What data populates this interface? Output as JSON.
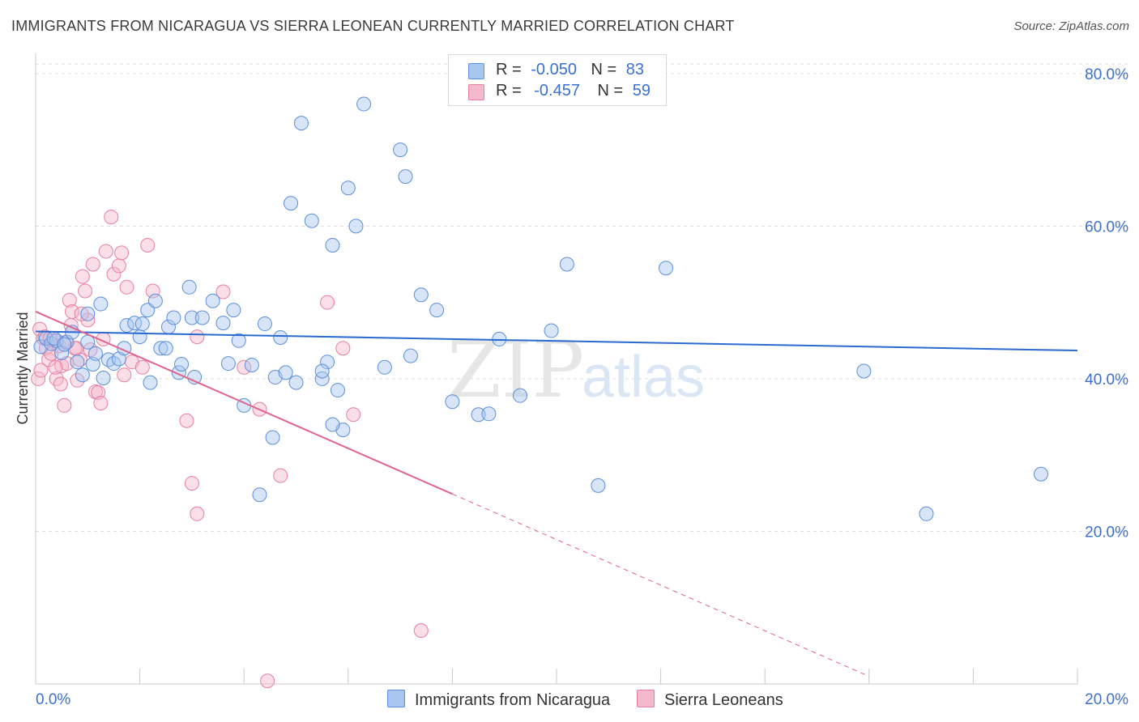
{
  "title": "IMMIGRANTS FROM NICARAGUA VS SIERRA LEONEAN CURRENTLY MARRIED CORRELATION CHART",
  "source": "Source: ZipAtlas.com",
  "watermark": {
    "zip": "ZIP",
    "atlas": "atlas"
  },
  "legend": {
    "rows": [
      {
        "r_label": "R =",
        "r_value": "-0.050",
        "n_label": "N =",
        "n_value": "83"
      },
      {
        "r_label": "R =",
        "r_value": "-0.457",
        "n_label": "N =",
        "n_value": "59"
      }
    ]
  },
  "bottom_legend": [
    "Immigrants from Nicaragua",
    "Sierra Leoneans"
  ],
  "colors": {
    "blue_fill": "#a9c6ef",
    "blue_stroke": "#5b8fd9",
    "blue_line": "#2a6ad0",
    "pink_fill": "#f4b9cc",
    "pink_stroke": "#e77fa0",
    "pink_line": "#e0648e",
    "tick_label": "#3b6fd1",
    "grid": "#dcdcdc"
  },
  "chart_data": {
    "type": "scatter",
    "title": "IMMIGRANTS FROM NICARAGUA VS SIERRA LEONEAN CURRENTLY MARRIED CORRELATION CHART",
    "xlabel": "",
    "ylabel": "Currently Married",
    "xlim": [
      0,
      20
    ],
    "ylim": [
      0,
      82
    ],
    "x_tick_labels": [
      "0.0%",
      "20.0%"
    ],
    "y_ticks": [
      20,
      40,
      60,
      80
    ],
    "y_tick_labels": [
      "20.0%",
      "40.0%",
      "60.0%",
      "80.0%"
    ],
    "grid": true,
    "series": [
      {
        "name": "Immigrants from Nicaragua",
        "color": "blue",
        "trend": {
          "x0": 0.0,
          "y0": 46.2,
          "x1": 20.0,
          "y1": 43.7,
          "dashed_from": null
        },
        "points": [
          [
            0.1,
            44.2
          ],
          [
            0.2,
            45.3
          ],
          [
            0.3,
            44.6
          ],
          [
            0.4,
            45.0
          ],
          [
            0.5,
            43.4
          ],
          [
            0.6,
            44.8
          ],
          [
            0.7,
            46.1
          ],
          [
            0.8,
            42.2
          ],
          [
            0.9,
            40.5
          ],
          [
            1.0,
            44.8
          ],
          [
            1.1,
            41.9
          ],
          [
            1.15,
            43.3
          ],
          [
            1.25,
            49.8
          ],
          [
            1.4,
            42.5
          ],
          [
            1.5,
            42.0
          ],
          [
            1.6,
            42.6
          ],
          [
            1.7,
            44.0
          ],
          [
            1.75,
            47.0
          ],
          [
            1.9,
            47.3
          ],
          [
            2.0,
            45.5
          ],
          [
            2.05,
            47.2
          ],
          [
            2.15,
            49.0
          ],
          [
            2.2,
            39.5
          ],
          [
            2.3,
            50.2
          ],
          [
            2.4,
            44.0
          ],
          [
            2.5,
            44.0
          ],
          [
            2.55,
            46.8
          ],
          [
            2.65,
            48.0
          ],
          [
            2.75,
            40.8
          ],
          [
            2.8,
            41.9
          ],
          [
            2.95,
            52.0
          ],
          [
            3.0,
            48.0
          ],
          [
            3.05,
            40.2
          ],
          [
            3.2,
            48.0
          ],
          [
            3.4,
            50.2
          ],
          [
            3.6,
            47.3
          ],
          [
            3.8,
            49.0
          ],
          [
            3.9,
            45.0
          ],
          [
            4.0,
            36.5
          ],
          [
            4.15,
            41.8
          ],
          [
            4.4,
            47.2
          ],
          [
            4.55,
            32.3
          ],
          [
            4.6,
            40.2
          ],
          [
            4.7,
            45.4
          ],
          [
            4.8,
            40.8
          ],
          [
            4.9,
            63.0
          ],
          [
            5.0,
            39.5
          ],
          [
            5.1,
            73.5
          ],
          [
            5.3,
            60.7
          ],
          [
            5.5,
            40.0
          ],
          [
            5.6,
            42.2
          ],
          [
            5.7,
            57.5
          ],
          [
            5.8,
            38.5
          ],
          [
            5.9,
            33.3
          ],
          [
            5.5,
            41.0
          ],
          [
            6.0,
            65.0
          ],
          [
            6.15,
            60.0
          ],
          [
            6.3,
            76.0
          ],
          [
            7.0,
            70.0
          ],
          [
            7.1,
            66.5
          ],
          [
            7.4,
            51.0
          ],
          [
            7.7,
            49.0
          ],
          [
            8.0,
            37.0
          ],
          [
            8.5,
            35.3
          ],
          [
            8.7,
            35.4
          ],
          [
            8.9,
            45.2
          ],
          [
            9.3,
            37.8
          ],
          [
            9.9,
            46.3
          ],
          [
            10.2,
            55.0
          ],
          [
            10.8,
            26.0
          ],
          [
            12.1,
            54.5
          ],
          [
            15.9,
            41.0
          ],
          [
            17.1,
            22.3
          ],
          [
            19.3,
            27.5
          ],
          [
            3.7,
            42.0
          ],
          [
            4.3,
            24.8
          ],
          [
            5.7,
            34.0
          ],
          [
            6.7,
            41.5
          ],
          [
            7.2,
            43.0
          ],
          [
            1.3,
            40.1
          ],
          [
            0.35,
            45.3
          ],
          [
            0.55,
            44.5
          ],
          [
            1.0,
            48.5
          ]
        ]
      },
      {
        "name": "Sierra Leoneans",
        "color": "pink",
        "trend": {
          "x0": 0.0,
          "y0": 48.8,
          "x1": 8.0,
          "y1": 24.9,
          "dashed_from": 8.0,
          "x_end": 16.0,
          "y_end": 1.0
        },
        "points": [
          [
            0.05,
            40.0
          ],
          [
            0.1,
            41.1
          ],
          [
            0.15,
            45.3
          ],
          [
            0.2,
            44.0
          ],
          [
            0.25,
            42.5
          ],
          [
            0.3,
            43.3
          ],
          [
            0.35,
            45.0
          ],
          [
            0.4,
            40.0
          ],
          [
            0.45,
            44.3
          ],
          [
            0.5,
            41.7
          ],
          [
            0.55,
            36.5
          ],
          [
            0.6,
            42.0
          ],
          [
            0.65,
            50.3
          ],
          [
            0.7,
            48.8
          ],
          [
            0.75,
            44.0
          ],
          [
            0.8,
            39.8
          ],
          [
            0.85,
            42.5
          ],
          [
            0.9,
            53.4
          ],
          [
            0.95,
            51.5
          ],
          [
            1.0,
            47.7
          ],
          [
            1.05,
            43.8
          ],
          [
            1.1,
            55.0
          ],
          [
            1.15,
            38.3
          ],
          [
            1.2,
            38.2
          ],
          [
            1.25,
            36.8
          ],
          [
            1.3,
            45.2
          ],
          [
            1.35,
            56.7
          ],
          [
            1.45,
            61.2
          ],
          [
            1.5,
            53.7
          ],
          [
            1.6,
            54.8
          ],
          [
            1.65,
            56.5
          ],
          [
            1.75,
            52.0
          ],
          [
            1.85,
            42.2
          ],
          [
            2.05,
            41.5
          ],
          [
            2.15,
            57.5
          ],
          [
            2.25,
            51.5
          ],
          [
            2.9,
            34.5
          ],
          [
            3.0,
            26.3
          ],
          [
            3.1,
            22.3
          ],
          [
            3.1,
            45.5
          ],
          [
            3.6,
            51.4
          ],
          [
            4.0,
            41.5
          ],
          [
            4.3,
            36.0
          ],
          [
            4.45,
            0.4
          ],
          [
            4.7,
            27.3
          ],
          [
            5.6,
            50.0
          ],
          [
            5.9,
            44.0
          ],
          [
            6.1,
            35.3
          ],
          [
            7.4,
            7.0
          ],
          [
            0.08,
            46.5
          ],
          [
            0.18,
            45.5
          ],
          [
            0.28,
            45.3
          ],
          [
            0.38,
            41.5
          ],
          [
            0.48,
            39.3
          ],
          [
            0.58,
            44.8
          ],
          [
            0.68,
            47.0
          ],
          [
            0.78,
            44.0
          ],
          [
            0.88,
            48.5
          ],
          [
            1.7,
            40.5
          ]
        ]
      }
    ]
  }
}
